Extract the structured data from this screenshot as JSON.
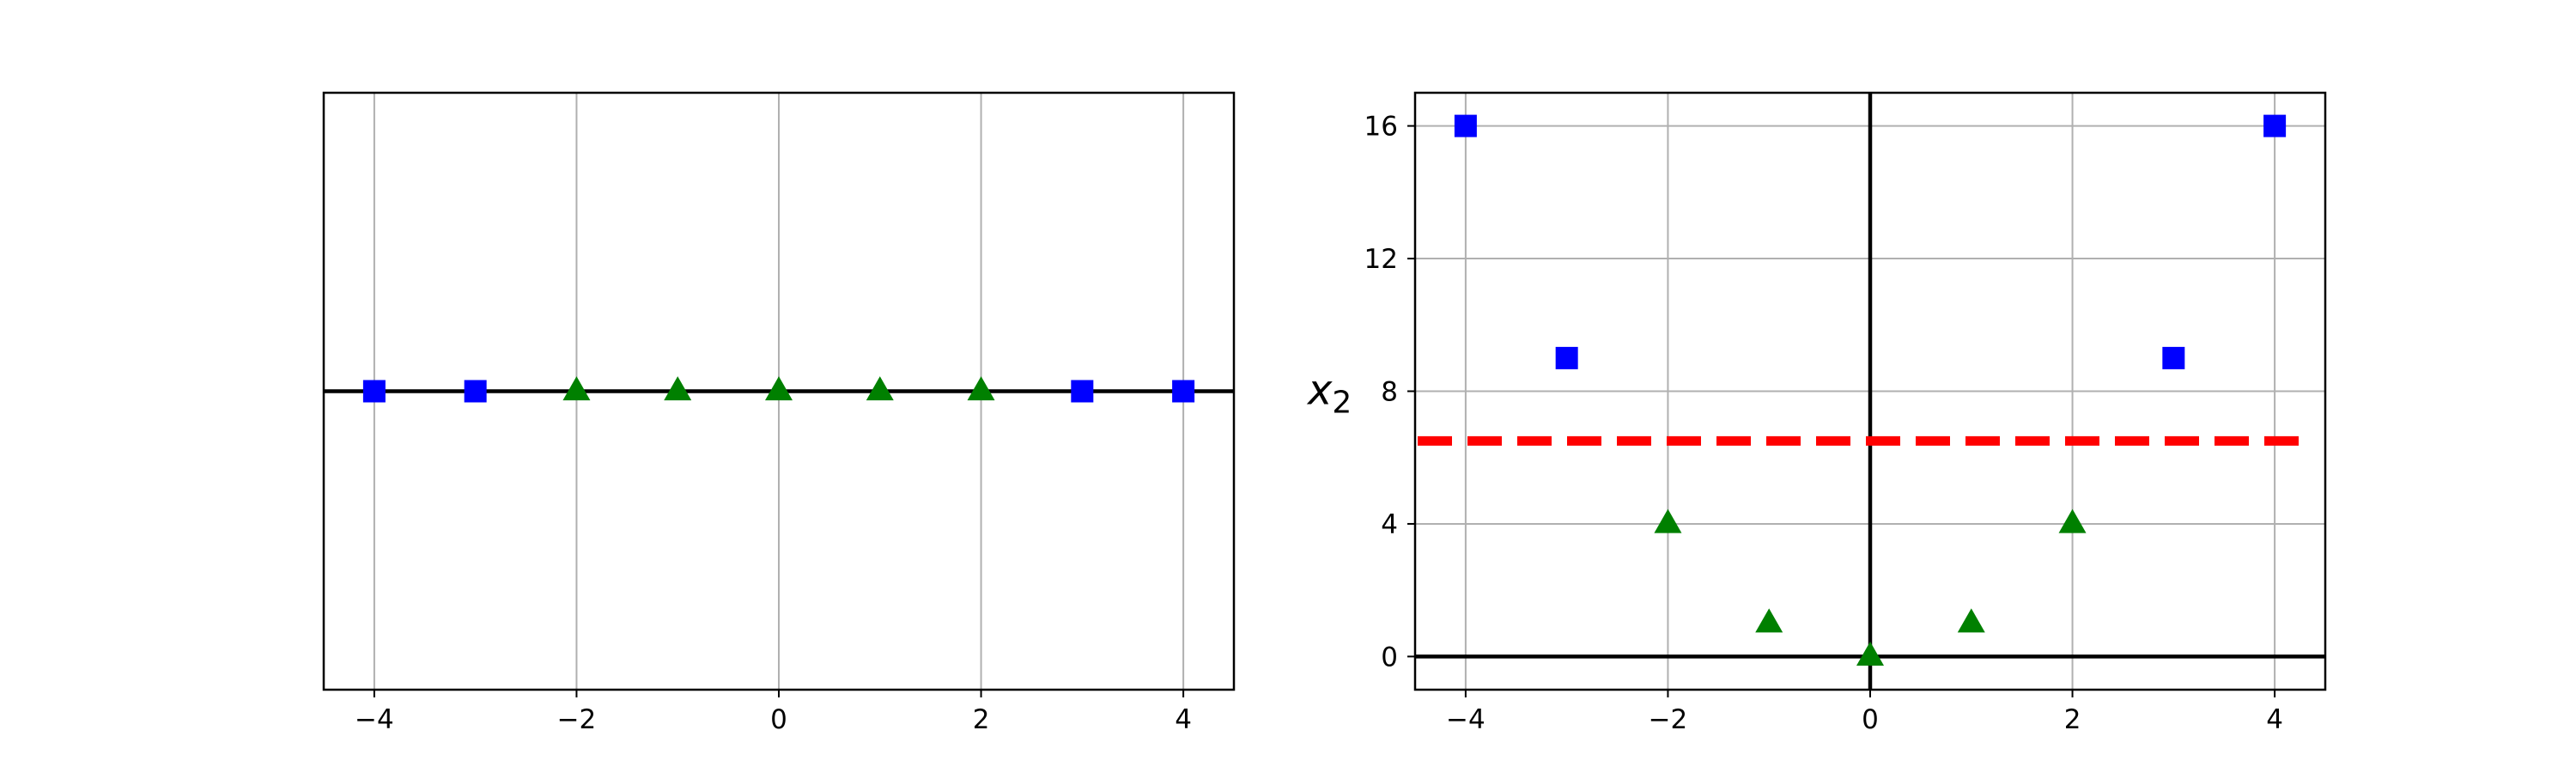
{
  "chart_data": [
    {
      "type": "scatter",
      "title": "",
      "xlabel": "",
      "ylabel": "",
      "xlim": [
        -4.5,
        4.5
      ],
      "ylim": [
        -0.2,
        0.2
      ],
      "grid": true,
      "xticks": [
        -4,
        -2,
        0,
        2,
        4
      ],
      "xtick_labels": [
        "−4",
        "−2",
        "0",
        "2",
        "4"
      ],
      "yticks": [],
      "ytick_labels": [],
      "hline_y": 0,
      "series": [
        {
          "marker": "square",
          "color": "#0000ff",
          "x": [
            -4,
            -3,
            3,
            4
          ],
          "y": [
            0,
            0,
            0,
            0
          ]
        },
        {
          "marker": "triangle",
          "color": "#008000",
          "x": [
            -2,
            -1,
            0,
            1,
            2
          ],
          "y": [
            0,
            0,
            0,
            0,
            0
          ]
        }
      ]
    },
    {
      "type": "scatter",
      "title": "",
      "xlabel": "",
      "ylabel": "x",
      "ylabel_sub": "2",
      "xlim": [
        -4.5,
        4.5
      ],
      "ylim": [
        -1,
        17
      ],
      "grid": true,
      "xticks": [
        -4,
        -2,
        0,
        2,
        4
      ],
      "xtick_labels": [
        "−4",
        "−2",
        "0",
        "2",
        "4"
      ],
      "yticks": [
        0,
        4,
        8,
        12,
        16
      ],
      "ytick_labels": [
        "0",
        "4",
        "8",
        "12",
        "16"
      ],
      "hline_y": 0,
      "vline_x": 0,
      "decision_boundary": {
        "y": 6.5,
        "x_range": [
          -4.5,
          4.5
        ],
        "color": "#ff0000",
        "style": "dashed"
      },
      "series": [
        {
          "marker": "square",
          "color": "#0000ff",
          "x": [
            -4,
            -3,
            3,
            4
          ],
          "y": [
            16,
            9,
            9,
            16
          ]
        },
        {
          "marker": "triangle",
          "color": "#008000",
          "x": [
            -2,
            -1,
            0,
            1,
            2
          ],
          "y": [
            4,
            1,
            0,
            1,
            4
          ]
        }
      ]
    }
  ]
}
